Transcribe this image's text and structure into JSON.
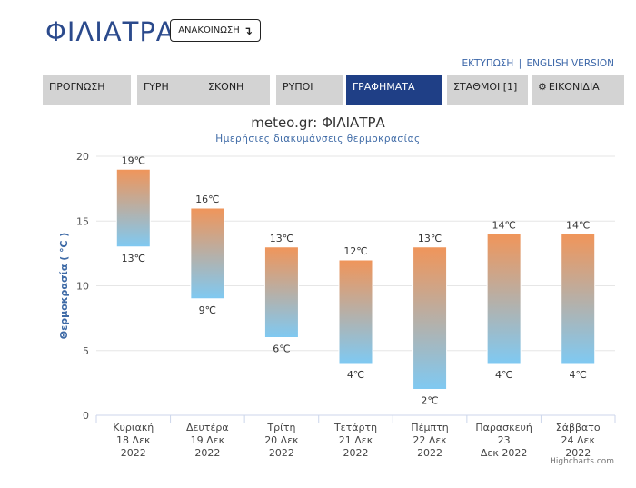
{
  "header": {
    "title": "ΦΙΛΙΑΤΡΑ",
    "announce_label": "ΑΝΑΚΟΙΝΩΣΗ",
    "announce_icon": "↴"
  },
  "toplinks": {
    "print": "ΕΚΤΥΠΩΣΗ",
    "separator": "|",
    "english": "ENGLISH VERSION"
  },
  "tabs": [
    {
      "label": "ΠΡΟΓΝΩΣΗ",
      "active": false
    },
    {
      "label": "ΓΥΡΗ",
      "active": false
    },
    {
      "label": "ΣΚΟΝΗ",
      "active": false
    },
    {
      "label": "ΡΥΠΟΙ",
      "active": false
    },
    {
      "label": "ΓΡΑΦΗΜΑΤΑ",
      "active": true
    },
    {
      "label": "ΣΤΑΘΜΟΙ [1]",
      "active": false
    },
    {
      "label": "ΕΙΚΟΝΙΔΙΑ",
      "active": false,
      "icon": "gear-icon"
    }
  ],
  "credits": "Highcharts.com",
  "chart_data": {
    "type": "columnrange",
    "title": "meteo.gr: ΦΙΛΙΑΤΡΑ",
    "subtitle": "Ημερήσιες διακυμάνσεις θερμοκρασίας",
    "ylabel": "Θερμοκρασία ( ℃ )",
    "ylim": [
      0,
      20
    ],
    "yticks": [
      0,
      5,
      10,
      15,
      20
    ],
    "categories": [
      [
        "Κυριακή",
        "18 Δεκ",
        "2022"
      ],
      [
        "Δευτέρα",
        "19 Δεκ",
        "2022"
      ],
      [
        "Τρίτη",
        "20 Δεκ",
        "2022"
      ],
      [
        "Τετάρτη",
        "21 Δεκ",
        "2022"
      ],
      [
        "Πέμπτη",
        "22 Δεκ",
        "2022"
      ],
      [
        "Παρασκευή",
        "23",
        "Δεκ 2022"
      ],
      [
        "Σάββατο",
        "24 Δεκ",
        "2022"
      ]
    ],
    "series": [
      {
        "low": [
          13,
          9,
          6,
          4,
          2,
          4,
          4
        ],
        "high": [
          19,
          16,
          13,
          12,
          13,
          14,
          14
        ]
      }
    ],
    "label_suffix": "℃",
    "colors": {
      "top": "#f0955a",
      "bottom": "#7fc9f2"
    },
    "grid": true
  }
}
